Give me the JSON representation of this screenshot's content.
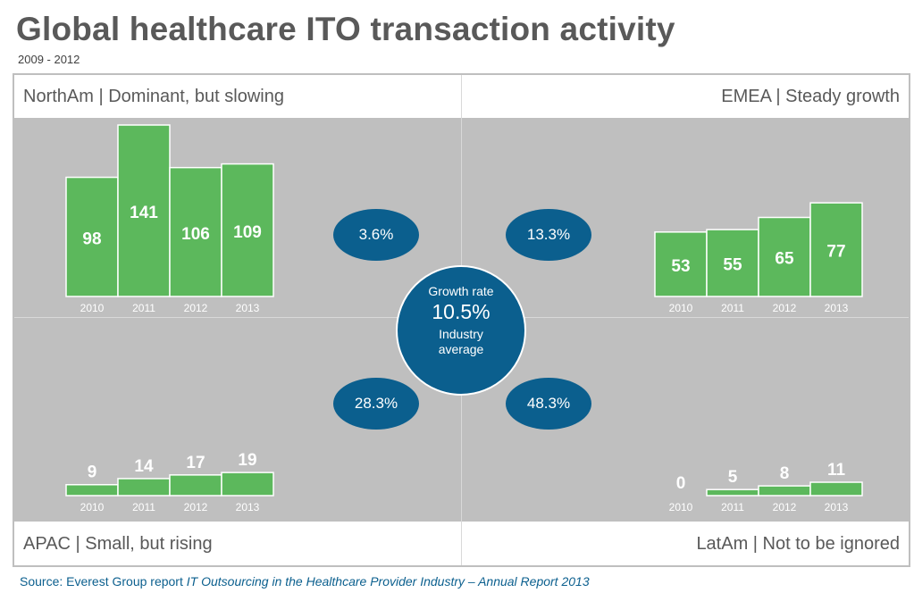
{
  "title": "Global healthcare ITO transaction activity",
  "subtitle": "2009 - 2012",
  "colors": {
    "bar": "#5cb85c",
    "bubble": "#0b5f8e",
    "panel": "#bfbfbf",
    "heading": "#595959"
  },
  "quadrants": {
    "northam": {
      "heading": "NorthAm | Dominant, but slowing",
      "growth": "3.6%"
    },
    "emea": {
      "heading": "EMEA | Steady growth",
      "growth": "13.3%"
    },
    "apac": {
      "heading": "APAC | Small, but rising",
      "growth": "28.3%"
    },
    "latam": {
      "heading": "LatAm | Not to be ignored",
      "growth": "48.3%"
    }
  },
  "center": {
    "line1": "Growth rate",
    "value": "10.5%",
    "line3a": "Industry",
    "line3b": "average"
  },
  "source": {
    "prefix": "Source: Everest Group report ",
    "title": "IT Outsourcing in the Healthcare Provider Industry – Annual Report 2013"
  },
  "chart_data": [
    {
      "type": "bar",
      "title": "NorthAm",
      "categories": [
        "2010",
        "2011",
        "2012",
        "2013"
      ],
      "values": [
        98,
        141,
        106,
        109
      ],
      "ylim": [
        0,
        141
      ]
    },
    {
      "type": "bar",
      "title": "EMEA",
      "categories": [
        "2010",
        "2011",
        "2012",
        "2013"
      ],
      "values": [
        53,
        55,
        65,
        77
      ],
      "ylim": [
        0,
        141
      ]
    },
    {
      "type": "bar",
      "title": "APAC",
      "categories": [
        "2010",
        "2011",
        "2012",
        "2013"
      ],
      "values": [
        9,
        14,
        17,
        19
      ],
      "ylim": [
        0,
        141
      ]
    },
    {
      "type": "bar",
      "title": "LatAm",
      "categories": [
        "2010",
        "2011",
        "2012",
        "2013"
      ],
      "values": [
        0,
        5,
        8,
        11
      ],
      "ylim": [
        0,
        141
      ]
    }
  ]
}
